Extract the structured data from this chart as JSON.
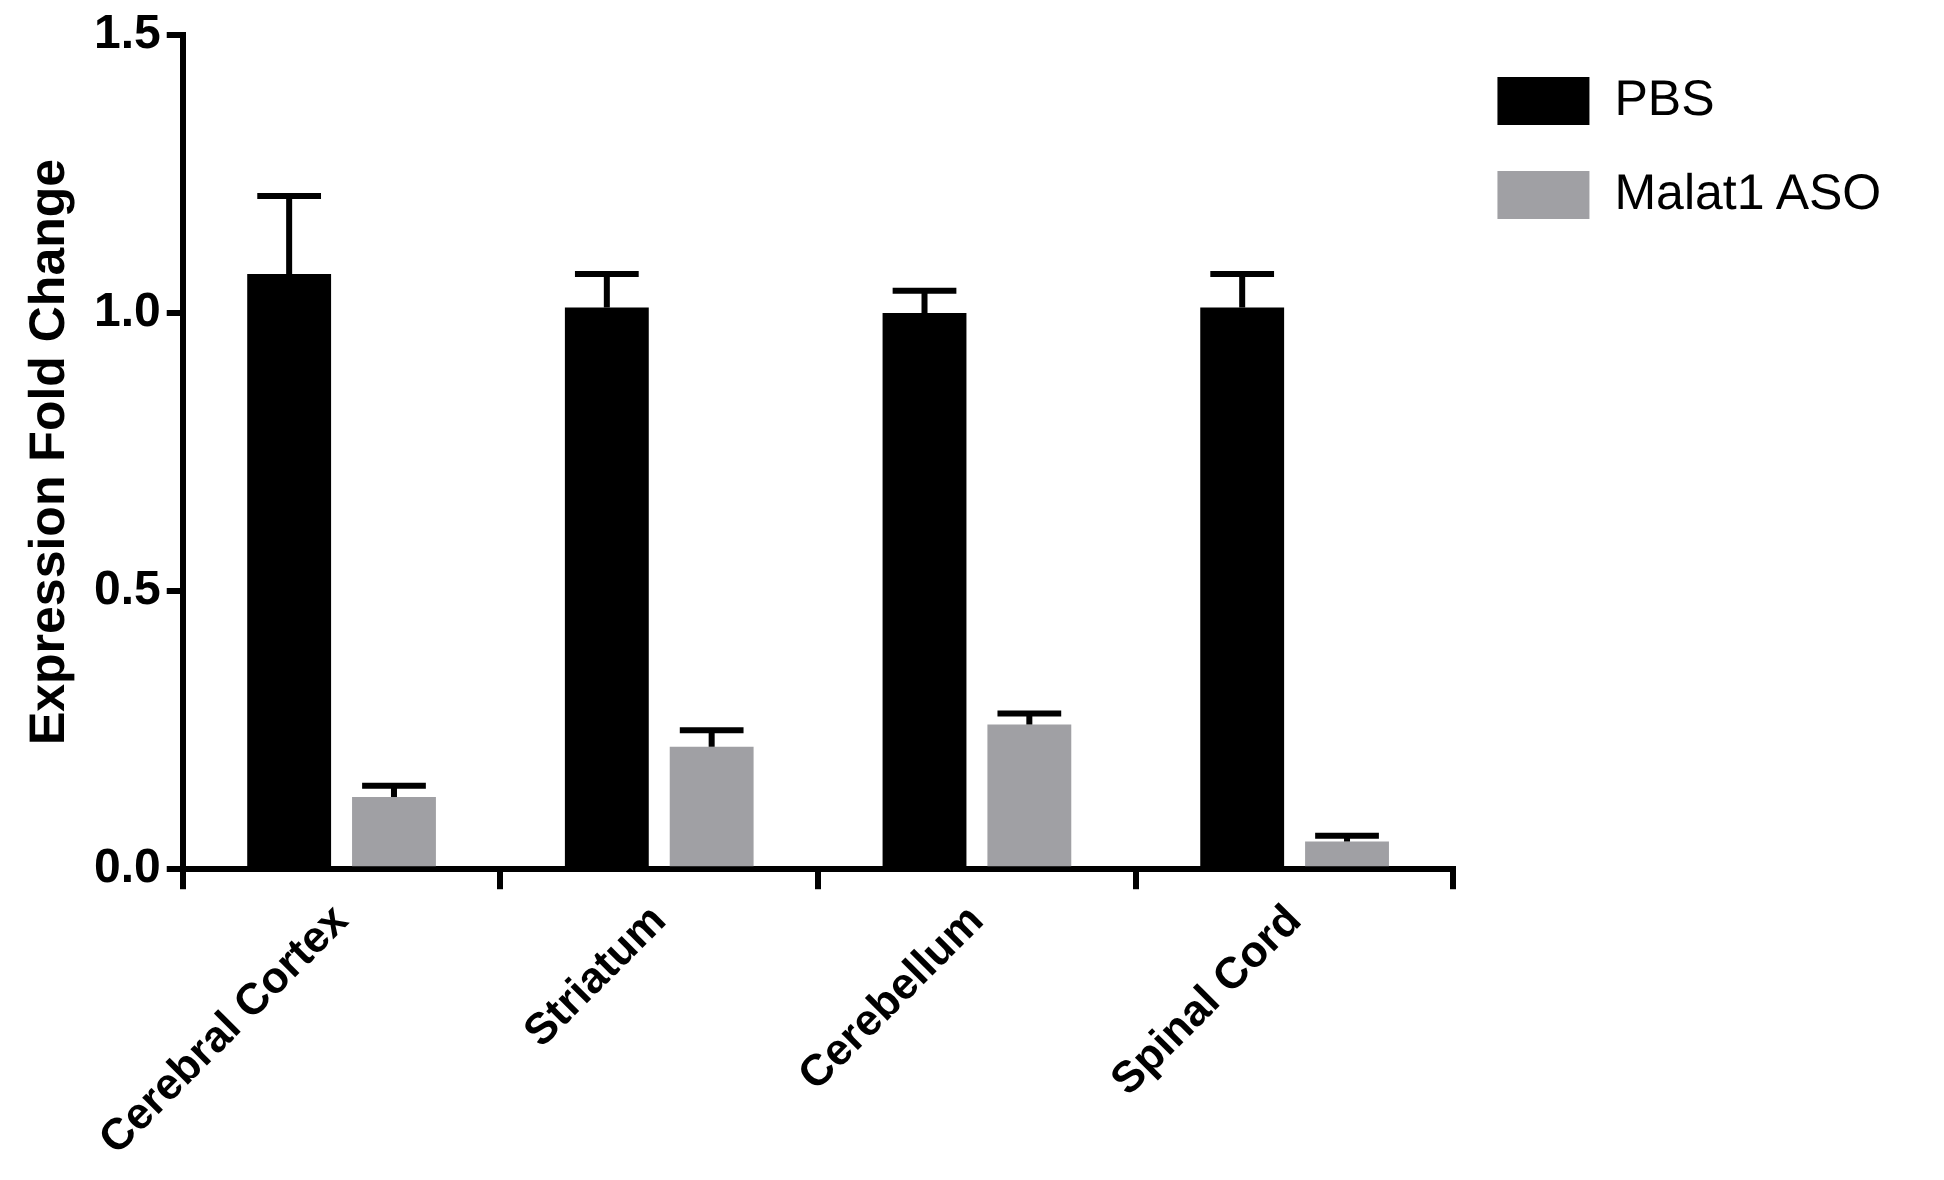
{
  "chart_data": {
    "type": "bar",
    "ylabel": "Expression Fold Change",
    "categories": [
      "Cerebral Cortex",
      "Striatum",
      "Cerebellum",
      "Spinal Cord"
    ],
    "series": [
      {
        "name": "PBS",
        "color": "#000000",
        "values": [
          1.07,
          1.01,
          1.0,
          1.01
        ],
        "errors": [
          [
            1.07,
            1.21
          ],
          [
            1.01,
            1.07
          ],
          [
            1.0,
            1.04
          ],
          [
            1.01,
            1.07
          ]
        ]
      },
      {
        "name": "Malat1 ASO",
        "color": "#a0a0a4",
        "values": [
          0.13,
          0.22,
          0.26,
          0.05
        ],
        "errors": [
          [
            0.13,
            0.15
          ],
          [
            0.22,
            0.25
          ],
          [
            0.26,
            0.28
          ],
          [
            0.05,
            0.06
          ]
        ]
      }
    ],
    "ylim": [
      0,
      1.5
    ],
    "yticks": [
      {
        "value": 0,
        "label": "0.0"
      },
      {
        "value": 0.5,
        "label": "0.5"
      },
      {
        "value": 1,
        "label": "1.0"
      },
      {
        "value": 1.5,
        "label": "1.5"
      }
    ],
    "grid": false,
    "legend": "top right"
  }
}
